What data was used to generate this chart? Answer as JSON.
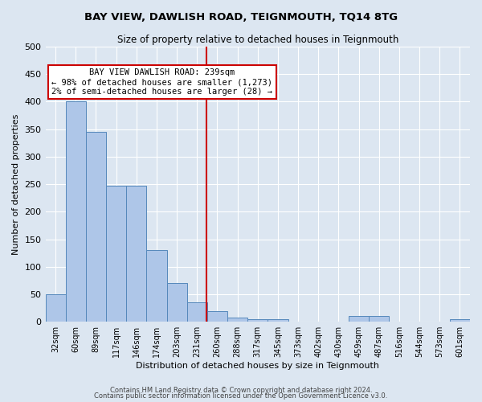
{
  "title": "BAY VIEW, DAWLISH ROAD, TEIGNMOUTH, TQ14 8TG",
  "subtitle": "Size of property relative to detached houses in Teignmouth",
  "xlabel": "Distribution of detached houses by size in Teignmouth",
  "ylabel": "Number of detached properties",
  "bar_labels": [
    "32sqm",
    "60sqm",
    "89sqm",
    "117sqm",
    "146sqm",
    "174sqm",
    "203sqm",
    "231sqm",
    "260sqm",
    "288sqm",
    "317sqm",
    "345sqm",
    "373sqm",
    "402sqm",
    "430sqm",
    "459sqm",
    "487sqm",
    "516sqm",
    "544sqm",
    "573sqm",
    "601sqm"
  ],
  "bar_values": [
    50,
    400,
    345,
    248,
    248,
    130,
    70,
    35,
    20,
    7,
    5,
    5,
    0,
    0,
    0,
    10,
    10,
    0,
    0,
    0,
    5
  ],
  "bar_color": "#aec6e8",
  "bar_edgecolor": "#5588bb",
  "background_color": "#dce6f1",
  "grid_color": "#ffffff",
  "vline_x": 7.45,
  "vline_color": "#cc0000",
  "annotation_title": "BAY VIEW DAWLISH ROAD: 239sqm",
  "annotation_line1": "← 98% of detached houses are smaller (1,273)",
  "annotation_line2": "2% of semi-detached houses are larger (28) →",
  "annotation_box_facecolor": "#ffffff",
  "annotation_box_edgecolor": "#cc0000",
  "ylim": [
    0,
    500
  ],
  "yticks": [
    0,
    50,
    100,
    150,
    200,
    250,
    300,
    350,
    400,
    450,
    500
  ],
  "footnote1": "Contains HM Land Registry data © Crown copyright and database right 2024.",
  "footnote2": "Contains public sector information licensed under the Open Government Licence v3.0."
}
